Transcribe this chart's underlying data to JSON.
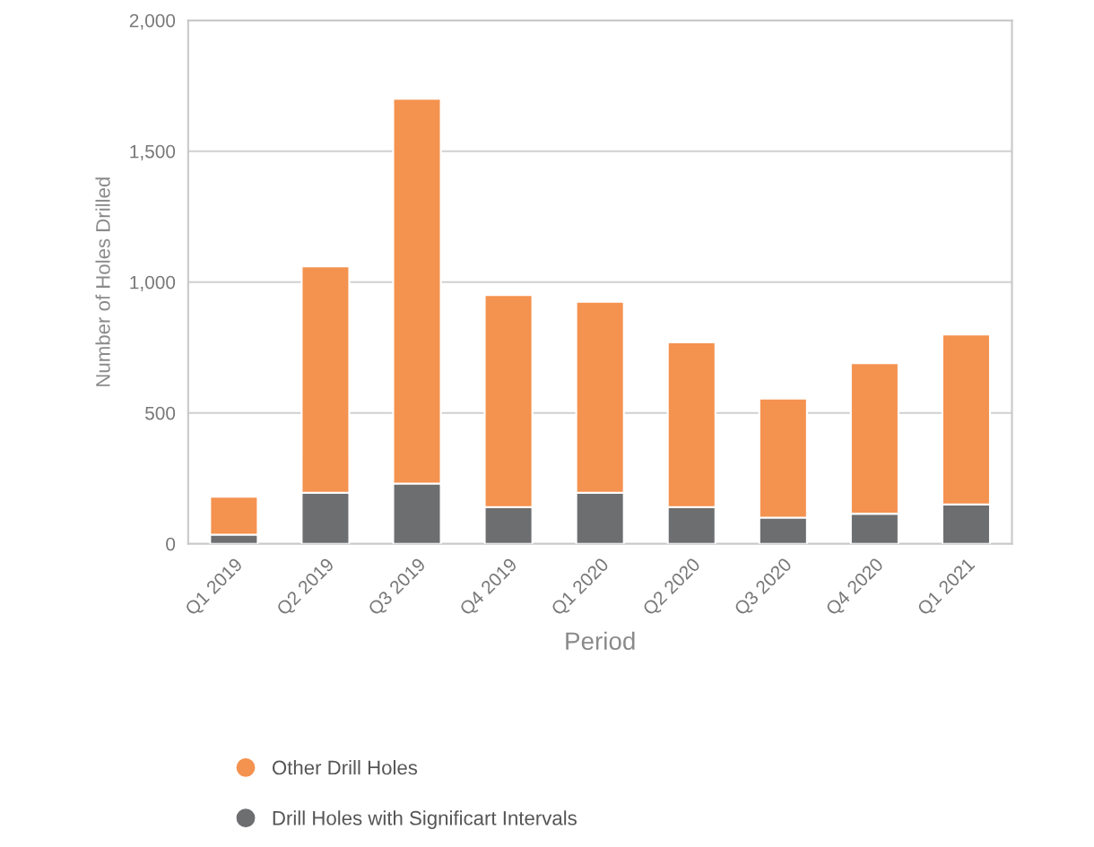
{
  "chart_data": {
    "type": "bar",
    "stacked": true,
    "xlabel": "Period",
    "ylabel": "Number of Holes Drilled",
    "categories": [
      "Q1 2019",
      "Q2 2019",
      "Q3 2019",
      "Q4 2019",
      "Q1 2020",
      "Q2 2020",
      "Q3 2020",
      "Q4 2020",
      "Q1 2021"
    ],
    "series": [
      {
        "name": "Drill Holes with Significart Intervals",
        "color": "#6d6e70",
        "values": [
          35,
          195,
          230,
          140,
          195,
          140,
          100,
          115,
          150
        ]
      },
      {
        "name": "Other Drill Holes",
        "color": "#f4924f",
        "values": [
          145,
          865,
          1470,
          810,
          730,
          630,
          455,
          575,
          650
        ]
      }
    ],
    "ylim": [
      0,
      2000
    ],
    "yticks": [
      {
        "value": 0,
        "label": "0"
      },
      {
        "value": 500,
        "label": "500"
      },
      {
        "value": 1000,
        "label": "1,000"
      },
      {
        "value": 1500,
        "label": "1,500"
      },
      {
        "value": 2000,
        "label": "2,000"
      }
    ],
    "grid": "y",
    "legend": "bottom"
  }
}
